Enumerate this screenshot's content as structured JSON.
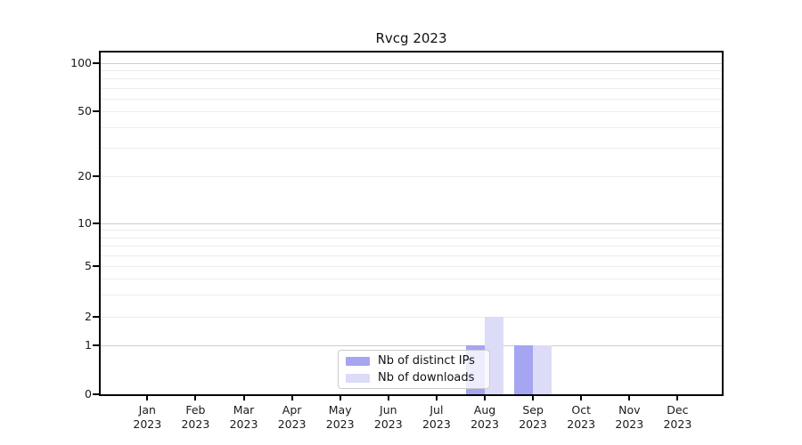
{
  "chart_data": {
    "type": "bar",
    "title": "Rvcg 2023",
    "categories": [
      "Jan 2023",
      "Feb 2023",
      "Mar 2023",
      "Apr 2023",
      "May 2023",
      "Jun 2023",
      "Jul 2023",
      "Aug 2023",
      "Sep 2023",
      "Oct 2023",
      "Nov 2023",
      "Dec 2023"
    ],
    "months": [
      "Jan",
      "Feb",
      "Mar",
      "Apr",
      "May",
      "Jun",
      "Jul",
      "Aug",
      "Sep",
      "Oct",
      "Nov",
      "Dec"
    ],
    "year_label": "2023",
    "series": [
      {
        "name": "Nb of distinct IPs",
        "color": "#a5a5f2",
        "values": [
          0,
          0,
          0,
          0,
          0,
          0,
          0,
          1,
          1,
          0,
          0,
          0
        ]
      },
      {
        "name": "Nb of downloads",
        "color": "#dcdcf8",
        "values": [
          0,
          0,
          0,
          0,
          0,
          0,
          0,
          2,
          1,
          0,
          0,
          0
        ]
      }
    ],
    "xlabel": "",
    "ylabel": "",
    "y_scale": "symlog",
    "y_ticks": [
      0,
      1,
      2,
      5,
      10,
      20,
      50,
      100
    ],
    "ylim": [
      0,
      100
    ],
    "grid": true,
    "legend_position": "lower center"
  },
  "colors": {
    "axis": "#000000",
    "grid_minor": "#ececec",
    "grid_major": "#cecece",
    "background": "#ffffff"
  }
}
